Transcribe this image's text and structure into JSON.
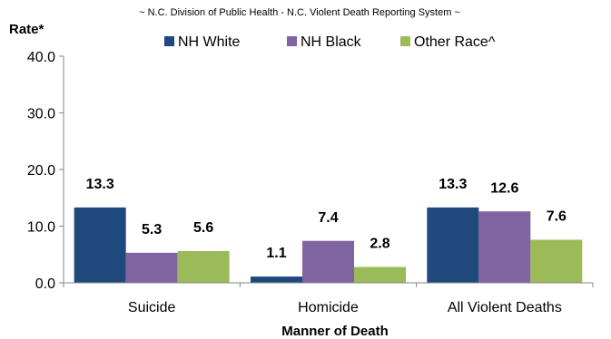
{
  "chart_data": {
    "type": "bar",
    "subtitle": "~ N.C. Division of Public Health - N.C. Violent Death Reporting System ~",
    "ylabel": "Rate*",
    "xlabel": "Manner of Death",
    "ylim": [
      0,
      40
    ],
    "yticks": [
      "0.0",
      "10.0",
      "20.0",
      "30.0",
      "40.0"
    ],
    "grid": false,
    "legend_position": "top",
    "categories": [
      "Suicide",
      "Homicide",
      "All Violent Deaths"
    ],
    "series": [
      {
        "name": "NH White",
        "color": "#1f497d",
        "values": [
          13.3,
          1.1,
          13.3
        ],
        "labels": [
          "13.3",
          "1.1",
          "13.3"
        ]
      },
      {
        "name": "NH Black",
        "color": "#8064a2",
        "values": [
          5.3,
          7.4,
          12.6
        ],
        "labels": [
          "5.3",
          "7.4",
          "12.6"
        ]
      },
      {
        "name": "Other Race^",
        "color": "#9bbb59",
        "values": [
          5.6,
          2.8,
          7.6
        ],
        "labels": [
          "5.6",
          "2.8",
          "7.6"
        ]
      }
    ]
  }
}
